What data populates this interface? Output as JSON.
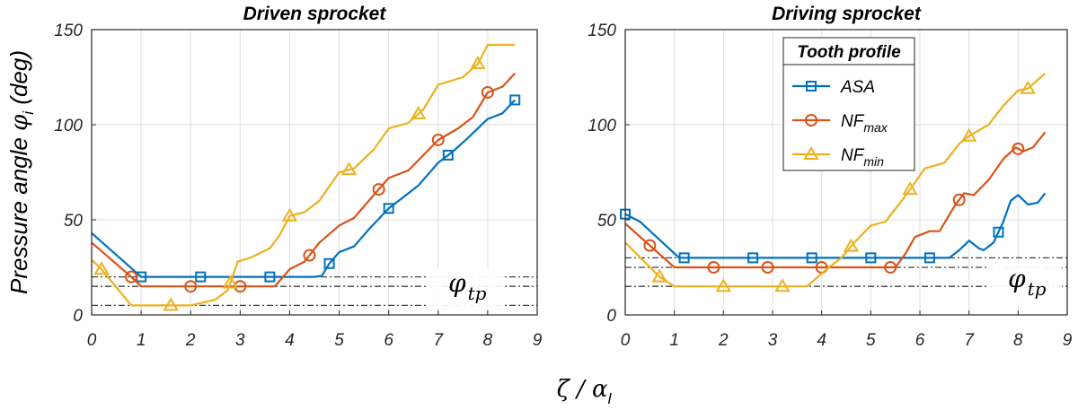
{
  "figure": {
    "ylabel_main": "Pressure angle ",
    "ylabel_sym": "φ",
    "ylabel_sub": "i",
    "ylabel_unit": " (deg)",
    "xlabel_main": "ζ / α",
    "xlabel_sub": "l"
  },
  "legend": {
    "title": "Tooth profile",
    "entries": [
      {
        "base": "ASA",
        "sub": "",
        "series": "ASA"
      },
      {
        "base": "NF",
        "sub": "max",
        "series": "NF_max"
      },
      {
        "base": "NF",
        "sub": "min",
        "series": "NF_min"
      }
    ]
  },
  "colors": {
    "ASA": "#0072BD",
    "NF_max": "#D95319",
    "NF_min": "#EDB120",
    "reference": "#404040",
    "grid": "#dedede",
    "axis": "#262626"
  },
  "chart_data": [
    {
      "type": "line",
      "title": "Driven sprocket",
      "xlim": [
        0,
        9
      ],
      "ylim": [
        0,
        150
      ],
      "xticks": [
        0,
        1,
        2,
        3,
        4,
        5,
        6,
        7,
        8,
        9
      ],
      "yticks": [
        0,
        50,
        100,
        150
      ],
      "grid": true,
      "annotation": {
        "base": "φ",
        "sub": "tp"
      },
      "reference_lines": [
        20,
        15,
        5
      ],
      "series": [
        {
          "name": "ASA",
          "marker": "square",
          "x": [
            0,
            1,
            1.5,
            2,
            2.5,
            3,
            3.5,
            4,
            4.5,
            4.65,
            4.8,
            5,
            5.3,
            5.6,
            6,
            6.3,
            6.6,
            7,
            7.3,
            7.6,
            8,
            8.3,
            8.55
          ],
          "y": [
            43,
            20,
            20,
            20,
            20,
            20,
            20,
            20,
            20,
            20.5,
            27,
            33,
            36,
            45,
            56,
            62,
            68,
            80,
            86,
            93,
            103,
            106,
            113
          ],
          "marker_x": [
            1,
            2.2,
            3.6,
            4.8,
            6,
            7.2,
            8.55
          ]
        },
        {
          "name": "NF_max",
          "marker": "circle",
          "x": [
            0,
            0.8,
            1,
            1.5,
            2,
            2.5,
            3,
            3.5,
            3.7,
            4,
            4.3,
            4.6,
            5,
            5.3,
            5.7,
            6,
            6.4,
            7,
            7.4,
            7.7,
            8,
            8.3,
            8.55
          ],
          "y": [
            38,
            20,
            15,
            15,
            15,
            15,
            15,
            15,
            15,
            24,
            28,
            38,
            47,
            51,
            63,
            72,
            76,
            92,
            98,
            104,
            117,
            120,
            127
          ],
          "marker_x": [
            0.8,
            2,
            3,
            4.4,
            5.8,
            7,
            8
          ]
        },
        {
          "name": "NF_min",
          "marker": "triangle",
          "x": [
            0,
            0.2,
            0.8,
            1.3,
            1.6,
            2,
            2.5,
            2.75,
            2.95,
            3.2,
            3.6,
            3.8,
            4,
            4.3,
            4.6,
            5,
            5.3,
            5.7,
            6,
            6.4,
            6.7,
            7,
            7.5,
            7.8,
            8,
            8.2,
            8.55
          ],
          "y": [
            29,
            24,
            5,
            5,
            5,
            5,
            8,
            13,
            28,
            30,
            35,
            42,
            52,
            54,
            60,
            75,
            77,
            87,
            98,
            101,
            108,
            121,
            125,
            132,
            142,
            142,
            142
          ],
          "marker_x": [
            0.2,
            1.6,
            2.8,
            4,
            5.2,
            6.6,
            7.8
          ]
        }
      ]
    },
    {
      "type": "line",
      "title": "Driving sprocket",
      "xlim": [
        0,
        9
      ],
      "ylim": [
        0,
        150
      ],
      "xticks": [
        0,
        1,
        2,
        3,
        4,
        5,
        6,
        7,
        8,
        9
      ],
      "yticks": [
        0,
        50,
        100,
        150
      ],
      "grid": true,
      "annotation": {
        "base": "φ",
        "sub": "tp"
      },
      "reference_lines": [
        30,
        25,
        15
      ],
      "series": [
        {
          "name": "ASA",
          "marker": "square",
          "x": [
            0,
            0.3,
            1.1,
            1.5,
            2,
            3,
            4,
            5,
            6,
            6.6,
            6.8,
            7,
            7.2,
            7.3,
            7.5,
            7.7,
            7.85,
            8,
            8.2,
            8.4,
            8.55
          ],
          "y": [
            53,
            49,
            30,
            30,
            30,
            30,
            30,
            30,
            30,
            30,
            34,
            39,
            35,
            34,
            38,
            49,
            60,
            63,
            58,
            59,
            64
          ],
          "marker_x": [
            0,
            1.2,
            2.6,
            3.8,
            5,
            6.2,
            7.6
          ]
        },
        {
          "name": "NF_max",
          "marker": "circle",
          "x": [
            0,
            1,
            1.5,
            2,
            3,
            4,
            5,
            5.5,
            5.7,
            5.9,
            6.2,
            6.4,
            6.7,
            6.9,
            7.1,
            7.4,
            7.7,
            7.95,
            8.1,
            8.3,
            8.55
          ],
          "y": [
            48,
            25,
            25,
            25,
            25,
            25,
            25,
            25,
            32,
            41,
            44,
            44,
            57,
            64,
            63,
            71,
            82,
            88,
            86,
            88,
            96
          ],
          "marker_x": [
            0.5,
            1.8,
            2.9,
            4,
            5.4,
            6.8,
            8
          ]
        },
        {
          "name": "NF_min",
          "marker": "triangle",
          "x": [
            0,
            0.7,
            1,
            2,
            3,
            3.7,
            4.1,
            4.4,
            4.7,
            5,
            5.3,
            5.6,
            5.8,
            6.1,
            6.5,
            6.8,
            7,
            7.4,
            7.7,
            8,
            8.2,
            8.55
          ],
          "y": [
            38,
            20,
            15,
            15,
            15,
            15,
            24,
            30,
            39,
            47,
            49,
            59,
            66,
            77,
            80,
            90,
            94,
            100,
            110,
            118,
            119,
            127
          ],
          "marker_x": [
            0.7,
            2,
            3.2,
            4.6,
            5.8,
            7,
            8.2
          ]
        }
      ]
    }
  ]
}
